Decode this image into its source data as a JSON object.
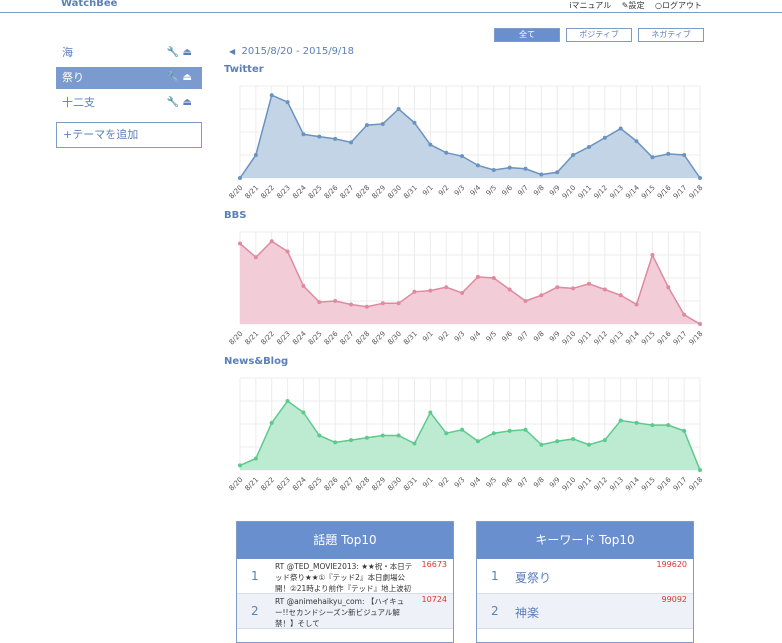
{
  "app": {
    "brand": "WatchBee"
  },
  "topnav": {
    "manual": "iマニュアル",
    "settings": "✎設定",
    "logout": "○ログアウト"
  },
  "sidebar": {
    "items": [
      {
        "label": "海",
        "active": false
      },
      {
        "label": "祭り",
        "active": true
      },
      {
        "label": "十二支",
        "active": false
      }
    ],
    "add_label": "+テーマを追加"
  },
  "filters": {
    "all": "全て",
    "positive": "ポジティブ",
    "negative": "ネガティブ"
  },
  "date_range": "2015/8/20 - 2015/9/18",
  "chart_data": [
    {
      "type": "area",
      "title": "Twitter",
      "x": [
        "8/20",
        "8/21",
        "8/22",
        "8/23",
        "8/24",
        "8/25",
        "8/26",
        "8/27",
        "8/28",
        "8/29",
        "8/30",
        "8/31",
        "9/1",
        "9/2",
        "9/3",
        "9/4",
        "9/5",
        "9/6",
        "9/7",
        "9/8",
        "9/9",
        "9/10",
        "9/11",
        "9/12",
        "9/13",
        "9/14",
        "9/15",
        "9/16",
        "9/17",
        "9/18"
      ],
      "values": [
        0,
        20,
        72,
        66,
        38,
        36,
        34,
        31,
        46,
        47,
        60,
        48,
        29,
        22,
        19,
        11,
        7,
        9,
        8,
        3,
        5,
        20,
        27,
        35,
        43,
        32,
        18,
        21,
        20,
        0
      ],
      "color": "#6b93c0",
      "fill": "#c3d4e6"
    },
    {
      "type": "area",
      "title": "BBS",
      "x": [
        "8/20",
        "8/21",
        "8/22",
        "8/23",
        "8/24",
        "8/25",
        "8/26",
        "8/27",
        "8/28",
        "8/29",
        "8/30",
        "8/31",
        "9/1",
        "9/2",
        "9/3",
        "9/4",
        "9/5",
        "9/6",
        "9/7",
        "9/8",
        "9/9",
        "9/10",
        "9/11",
        "9/12",
        "9/13",
        "9/14",
        "9/15",
        "9/16",
        "9/17",
        "9/18"
      ],
      "values": [
        70,
        58,
        72,
        63,
        33,
        19,
        20,
        17,
        15,
        18,
        18,
        28,
        29,
        32,
        27,
        41,
        40,
        30,
        20,
        25,
        32,
        31,
        35,
        30,
        25,
        17,
        60,
        32,
        8,
        0
      ],
      "color": "#e08aa0",
      "fill": "#f2cdd7"
    },
    {
      "type": "area",
      "title": "News&Blog",
      "x": [
        "8/20",
        "8/21",
        "8/22",
        "8/23",
        "8/24",
        "8/25",
        "8/26",
        "8/27",
        "8/28",
        "8/29",
        "8/30",
        "8/31",
        "9/1",
        "9/2",
        "9/3",
        "9/4",
        "9/5",
        "9/6",
        "9/7",
        "9/8",
        "9/9",
        "9/10",
        "9/11",
        "9/12",
        "9/13",
        "9/14",
        "9/15",
        "9/16",
        "9/17",
        "9/18"
      ],
      "values": [
        4,
        10,
        41,
        60,
        50,
        30,
        24,
        26,
        28,
        30,
        30,
        23,
        50,
        32,
        35,
        25,
        32,
        34,
        35,
        22,
        25,
        27,
        22,
        26,
        43,
        41,
        39,
        39,
        34,
        0
      ],
      "color": "#5cc98d",
      "fill": "#bdebd1"
    }
  ],
  "topics": {
    "title": "話題 Top10",
    "rows": [
      {
        "rank": "1",
        "text": "RT @TED_MOVIE2013: ★★祝・本日テッド祭り★★①『テッド2』本日劇場公開！②21時より前作『テッド』地上波初放送！！③ #パンツ",
        "count": "16673"
      },
      {
        "rank": "2",
        "text": "RT @animehaikyu_com: 【ハイキュー!!セカンドシーズン新ビジュアル解禁！】そして",
        "count": "10724"
      }
    ]
  },
  "keywords": {
    "title": "キーワード Top10",
    "rows": [
      {
        "rank": "1",
        "text": "夏祭り",
        "count": "199620"
      },
      {
        "rank": "2",
        "text": "神楽",
        "count": "99092"
      }
    ]
  }
}
